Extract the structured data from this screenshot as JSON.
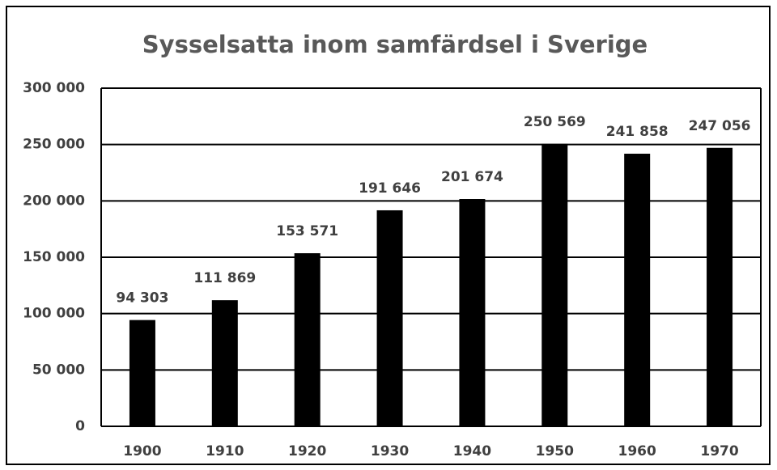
{
  "chart_data": {
    "type": "bar",
    "title": "Sysselsatta inom samfärdsel i Sverige",
    "categories": [
      "1900",
      "1910",
      "1920",
      "1930",
      "1940",
      "1950",
      "1960",
      "1970"
    ],
    "values": [
      94303,
      111869,
      153571,
      191646,
      201674,
      250569,
      241858,
      247056
    ],
    "value_labels": [
      "94 303",
      "111 869",
      "153 571",
      "191 646",
      "201 674",
      "250 569",
      "241 858",
      "247 056"
    ],
    "color": "#000000",
    "ylim": [
      0,
      300000
    ],
    "yticks": [
      0,
      {
        "value": 50000,
        "label": "50 000"
      },
      {
        "value": 100000,
        "label": "100 000"
      },
      {
        "value": 150000,
        "label": "150 000"
      },
      {
        "value": 200000,
        "label": "200 000"
      },
      {
        "value": 250000,
        "label": "250 000"
      },
      {
        "value": 300000,
        "label": "300 000"
      }
    ],
    "grid": true
  }
}
